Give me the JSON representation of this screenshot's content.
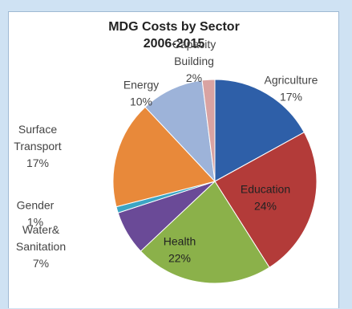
{
  "chart_data": {
    "type": "pie",
    "title": "MDG Costs by Sector",
    "subtitle": "2006-2015",
    "slices": [
      {
        "label": [
          "Agriculture"
        ],
        "percent_label": "17%",
        "value": 17,
        "color": "#2e5fa8",
        "label_inside": false
      },
      {
        "label": [
          "Education"
        ],
        "percent_label": "24%",
        "value": 24,
        "color": "#b33b39",
        "label_inside": true
      },
      {
        "label": [
          "Health"
        ],
        "percent_label": "22%",
        "value": 22,
        "color": "#8bb14a",
        "label_inside": true
      },
      {
        "label": [
          "Water&",
          "Sanitation"
        ],
        "percent_label": "7%",
        "value": 7,
        "color": "#6a4a97",
        "label_inside": false
      },
      {
        "label": [
          "Gender"
        ],
        "percent_label": "1%",
        "value": 1,
        "color": "#3ca5c4",
        "label_inside": false
      },
      {
        "label": [
          "Surface",
          "Transport"
        ],
        "percent_label": "17%",
        "value": 17,
        "color": "#e8893a",
        "label_inside": false
      },
      {
        "label": [
          "Energy"
        ],
        "percent_label": "10%",
        "value": 10,
        "color": "#9db3d9",
        "label_inside": false
      },
      {
        "label": [
          "Capacity",
          "Building"
        ],
        "percent_label": "2%",
        "value": 2,
        "color": "#d9a3a2",
        "label_inside": false
      }
    ]
  }
}
